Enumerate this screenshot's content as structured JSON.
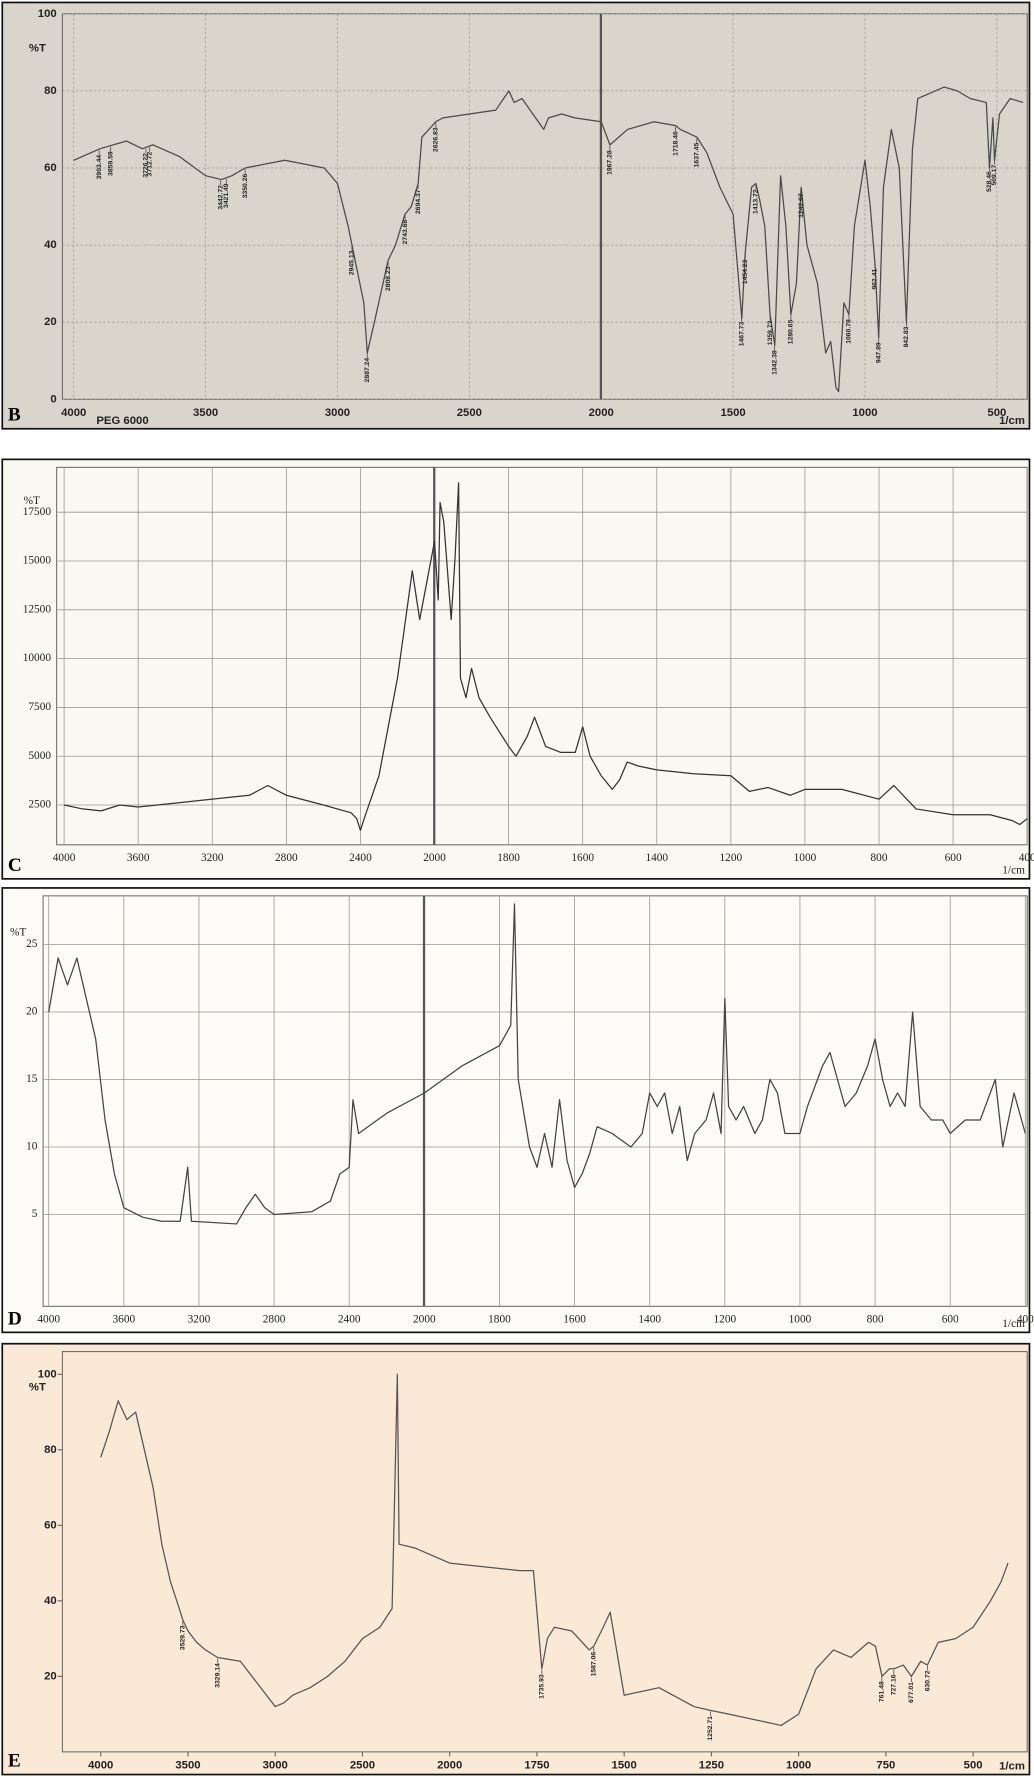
{
  "chart_data": [
    {
      "type": "line",
      "label": "B",
      "subtitle": "PEG 6000",
      "ylabel": "%T",
      "xlabel": "1/cm",
      "color": "#4a4a4a",
      "background": "#d9d5cc",
      "grid": true,
      "xlim": [
        4043,
        385
      ],
      "xticks": [
        4000,
        3500,
        3000,
        2500,
        2000,
        1500,
        1000,
        500
      ],
      "ylim": [
        0,
        100
      ],
      "yticks": [
        0,
        20,
        40,
        60,
        80,
        100
      ],
      "x": [
        4000,
        3900,
        3800,
        3740,
        3700,
        3600,
        3500,
        3440,
        3400,
        3350,
        3200,
        3050,
        3000,
        2960,
        2945,
        2900,
        2887,
        2860,
        2808,
        2780,
        2744,
        2720,
        2694,
        2680,
        2627,
        2600,
        2500,
        2400,
        2350,
        2330,
        2300,
        2218,
        2200,
        2150,
        2100,
        2000,
        1967,
        1900,
        1800,
        1718,
        1700,
        1637,
        1600,
        1550,
        1500,
        1467,
        1454,
        1430,
        1414,
        1400,
        1380,
        1360,
        1342,
        1320,
        1300,
        1281,
        1260,
        1242,
        1220,
        1180,
        1149,
        1130,
        1110,
        1100,
        1080,
        1061,
        1040,
        1000,
        980,
        962,
        948,
        930,
        900,
        870,
        843,
        820,
        800,
        700,
        650,
        600,
        540,
        528,
        515,
        509,
        490,
        450,
        400
      ],
      "values": [
        62,
        65,
        67,
        65,
        66,
        63,
        58,
        57,
        58,
        60,
        62,
        60,
        56,
        45,
        40,
        25,
        12,
        20,
        36,
        40,
        48,
        50,
        56,
        68,
        72,
        73,
        74,
        75,
        80,
        77,
        78,
        70,
        73,
        74,
        73,
        72,
        66,
        70,
        72,
        71,
        70,
        68,
        64,
        55,
        48,
        21,
        38,
        55,
        56,
        52,
        45,
        22,
        14,
        58,
        45,
        22,
        30,
        55,
        40,
        30,
        12,
        15,
        3,
        2,
        25,
        22,
        45,
        62,
        50,
        35,
        16,
        55,
        70,
        60,
        20,
        65,
        78,
        81,
        80,
        78,
        77,
        60,
        73,
        62,
        74,
        78,
        77
      ],
      "peaks": [
        3903.44,
        3859.59,
        3726.22,
        3712.72,
        3442.72,
        3421.49,
        3350.26,
        2945.13,
        2887.24,
        2808.23,
        2743.68,
        2694.37,
        2626.83,
        1967.28,
        1718.46,
        1637.45,
        1467.73,
        1454.23,
        1413.72,
        1359.73,
        1342.38,
        1280.65,
        1242.07,
        1060.78,
        962.41,
        947.89,
        842.83,
        528.46,
        509.17
      ]
    },
    {
      "type": "line",
      "label": "C",
      "ylabel": "%T",
      "xlabel": "1/cm",
      "color": "#333333",
      "background": "#faf8f2",
      "grid": true,
      "xlim": [
        4040,
        400
      ],
      "xticks": [
        4000,
        3600,
        3200,
        2800,
        2400,
        2000,
        1800,
        1600,
        1400,
        1200,
        1000,
        800,
        600,
        400
      ],
      "ylim": [
        460,
        19800
      ],
      "yticks": [
        2500,
        5000,
        7500,
        10000,
        12500,
        15000,
        17500
      ],
      "x": [
        4000,
        3900,
        3800,
        3700,
        3600,
        3400,
        3200,
        3000,
        2900,
        2800,
        2600,
        2450,
        2420,
        2400,
        2380,
        2300,
        2200,
        2120,
        2080,
        2060,
        2040,
        2020,
        2000,
        1990,
        1985,
        1975,
        1955,
        1945,
        1935,
        1930,
        1915,
        1900,
        1880,
        1850,
        1800,
        1780,
        1750,
        1730,
        1700,
        1660,
        1620,
        1600,
        1580,
        1550,
        1520,
        1500,
        1480,
        1450,
        1400,
        1300,
        1200,
        1150,
        1100,
        1040,
        1000,
        900,
        800,
        760,
        700,
        600,
        500,
        440,
        420,
        400
      ],
      "values": [
        2500,
        2300,
        2200,
        2500,
        2400,
        2600,
        2800,
        3000,
        3500,
        3000,
        2500,
        2100,
        1800,
        1200,
        1800,
        4000,
        9000,
        14500,
        12000,
        13000,
        14000,
        15000,
        16000,
        13000,
        18000,
        17000,
        12000,
        15000,
        19000,
        9000,
        8000,
        9500,
        8000,
        7000,
        5500,
        5000,
        6000,
        7000,
        5500,
        5200,
        5200,
        6500,
        5000,
        4000,
        3300,
        3800,
        4700,
        4500,
        4300,
        4100,
        4000,
        3200,
        3400,
        3000,
        3300,
        3300,
        2800,
        3500,
        2300,
        2000,
        2000,
        1700,
        1500,
        1800
      ]
    },
    {
      "type": "line",
      "label": "D",
      "ylabel": "%T",
      "xlabel": "1/cm",
      "color": "#444444",
      "background": "#fcfbf8",
      "grid": true,
      "xlim": [
        4030,
        395
      ],
      "xticks": [
        4000,
        3600,
        3200,
        2800,
        2400,
        2000,
        1800,
        1600,
        1400,
        1200,
        1000,
        800,
        600,
        400
      ],
      "ylim": [
        -1.8,
        28.6
      ],
      "yticks": [
        5,
        10,
        15,
        20,
        25
      ],
      "x": [
        4000,
        3950,
        3900,
        3850,
        3800,
        3750,
        3700,
        3650,
        3600,
        3500,
        3400,
        3300,
        3260,
        3240,
        3000,
        2950,
        2900,
        2850,
        2800,
        2600,
        2500,
        2450,
        2400,
        2380,
        2350,
        2300,
        2200,
        2000,
        1900,
        1800,
        1770,
        1760,
        1750,
        1720,
        1700,
        1680,
        1660,
        1640,
        1620,
        1600,
        1580,
        1560,
        1540,
        1500,
        1450,
        1420,
        1400,
        1380,
        1360,
        1340,
        1320,
        1300,
        1280,
        1250,
        1230,
        1210,
        1200,
        1190,
        1170,
        1150,
        1120,
        1100,
        1080,
        1060,
        1040,
        1000,
        980,
        940,
        920,
        900,
        880,
        850,
        820,
        800,
        780,
        760,
        740,
        720,
        700,
        680,
        650,
        620,
        600,
        560,
        520,
        480,
        460,
        430,
        400
      ],
      "values": [
        20,
        24,
        22,
        24,
        21,
        18,
        12,
        8,
        5.5,
        4.8,
        4.5,
        4.5,
        8.5,
        4.5,
        4.3,
        5.5,
        6.5,
        5.5,
        5,
        5.2,
        6,
        8,
        8.5,
        13.5,
        11,
        11.5,
        12.5,
        14,
        16,
        17.5,
        19,
        28,
        15,
        10,
        8.5,
        11,
        8.5,
        13.5,
        9,
        7,
        8,
        9.5,
        11.5,
        11,
        10,
        11,
        14,
        13,
        14,
        11,
        13,
        9,
        11,
        12,
        14,
        11,
        21,
        13,
        12,
        13,
        11,
        12,
        15,
        14,
        11,
        11,
        13,
        16,
        17,
        15,
        13,
        14,
        16,
        18,
        15,
        13,
        14,
        13,
        20,
        13,
        12,
        12,
        11,
        12,
        12,
        15,
        10,
        14,
        11
      ]
    },
    {
      "type": "line",
      "label": "E",
      "ylabel": "%T",
      "xlabel": "1/cm",
      "color": "#555555",
      "background": "#f9e9d6",
      "grid": false,
      "xlim": [
        4220,
        345
      ],
      "xticks": [
        4000,
        3500,
        3000,
        2500,
        2000,
        1750,
        1500,
        1250,
        1000,
        750,
        500
      ],
      "ylim": [
        0,
        106
      ],
      "yticks": [
        20,
        40,
        60,
        80,
        100
      ],
      "x": [
        4000,
        3950,
        3900,
        3850,
        3800,
        3750,
        3700,
        3650,
        3600,
        3550,
        3530,
        3500,
        3450,
        3400,
        3330,
        3200,
        3100,
        3000,
        2950,
        2900,
        2800,
        2700,
        2600,
        2500,
        2400,
        2330,
        2300,
        2290,
        2200,
        2000,
        1800,
        1760,
        1736,
        1720,
        1700,
        1650,
        1600,
        1587,
        1560,
        1540,
        1500,
        1450,
        1400,
        1300,
        1253,
        1200,
        1100,
        1050,
        1000,
        950,
        900,
        850,
        800,
        780,
        761,
        740,
        727,
        700,
        677,
        650,
        631,
        600,
        550,
        500,
        450,
        420,
        400
      ],
      "values": [
        78,
        85,
        93,
        88,
        90,
        80,
        70,
        55,
        45,
        38,
        35,
        32,
        29,
        27,
        25,
        24,
        18,
        12,
        13,
        15,
        17,
        20,
        24,
        30,
        33,
        38,
        100,
        55,
        54,
        50,
        48,
        48,
        22,
        30,
        33,
        32,
        27,
        28,
        33,
        37,
        15,
        16,
        17,
        12,
        11,
        10,
        8,
        7,
        10,
        22,
        27,
        25,
        29,
        28,
        20,
        22,
        22,
        23,
        20,
        24,
        23,
        29,
        30,
        33,
        40,
        45,
        50
      ],
      "peaks": [
        3529.73,
        3329.14,
        1735.93,
        1587.06,
        1252.71,
        761.48,
        727.16,
        677.01,
        630.72
      ]
    }
  ]
}
